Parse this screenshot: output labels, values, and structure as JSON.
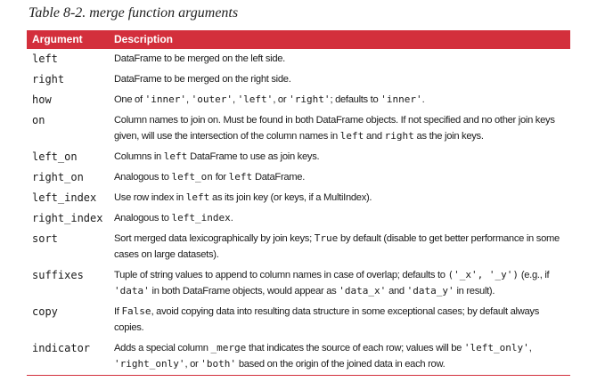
{
  "caption": "Table 8-2. merge function arguments",
  "headers": {
    "argument": "Argument",
    "description": "Description"
  },
  "rows": [
    {
      "arg": "left",
      "desc": [
        {
          "t": "DataFrame to be merged on the left side."
        }
      ]
    },
    {
      "arg": "right",
      "desc": [
        {
          "t": "DataFrame to be merged on the right side."
        }
      ]
    },
    {
      "arg": "how",
      "desc": [
        {
          "t": "One of "
        },
        {
          "c": "'inner'"
        },
        {
          "t": ", "
        },
        {
          "c": "'outer'"
        },
        {
          "t": ", "
        },
        {
          "c": "'left'"
        },
        {
          "t": ", or "
        },
        {
          "c": "'right'"
        },
        {
          "t": "; defaults to "
        },
        {
          "c": "'inner'"
        },
        {
          "t": "."
        }
      ]
    },
    {
      "arg": "on",
      "desc": [
        {
          "t": "Column names to join on. Must be found in both DataFrame objects. If not specified and no other join keys given, will use the intersection of the column names in "
        },
        {
          "c": "left"
        },
        {
          "t": " and "
        },
        {
          "c": "right"
        },
        {
          "t": " as the join keys."
        }
      ]
    },
    {
      "arg": "left_on",
      "desc": [
        {
          "t": "Columns in "
        },
        {
          "c": "left"
        },
        {
          "t": " DataFrame to use as join keys."
        }
      ]
    },
    {
      "arg": "right_on",
      "desc": [
        {
          "t": "Analogous to "
        },
        {
          "c": "left_on"
        },
        {
          "t": " for "
        },
        {
          "c": "left"
        },
        {
          "t": " DataFrame."
        }
      ]
    },
    {
      "arg": "left_index",
      "desc": [
        {
          "t": "Use row index in "
        },
        {
          "c": "left"
        },
        {
          "t": " as its join key (or keys, if a MultiIndex)."
        }
      ]
    },
    {
      "arg": "right_index",
      "desc": [
        {
          "t": "Analogous to "
        },
        {
          "c": "left_index"
        },
        {
          "t": "."
        }
      ]
    },
    {
      "arg": "sort",
      "desc": [
        {
          "t": "Sort merged data lexicographically by join keys; "
        },
        {
          "c": "True"
        },
        {
          "t": " by default (disable to get better performance in some cases on large datasets)."
        }
      ]
    },
    {
      "arg": "suffixes",
      "desc": [
        {
          "t": "Tuple of string values to append to column names in case of overlap; defaults to "
        },
        {
          "c": "('_x', '_y')"
        },
        {
          "t": " (e.g., if "
        },
        {
          "c": "'data'"
        },
        {
          "t": " in both DataFrame objects, would appear as "
        },
        {
          "c": "'data_x'"
        },
        {
          "t": " and "
        },
        {
          "c": "'data_y'"
        },
        {
          "t": " in result)."
        }
      ]
    },
    {
      "arg": "copy",
      "desc": [
        {
          "t": "If "
        },
        {
          "c": "False"
        },
        {
          "t": ", avoid copying data into resulting data structure in some exceptional cases; by default always copies."
        }
      ]
    },
    {
      "arg": "indicator",
      "desc": [
        {
          "t": "Adds a special column "
        },
        {
          "c": "_merge"
        },
        {
          "t": " that indicates the source of each row; values will be "
        },
        {
          "c": "'left_only'"
        },
        {
          "t": ", "
        },
        {
          "c": "'right_only'"
        },
        {
          "t": ", or "
        },
        {
          "c": "'both'"
        },
        {
          "t": " based on the origin of the joined data in each row."
        }
      ]
    }
  ]
}
